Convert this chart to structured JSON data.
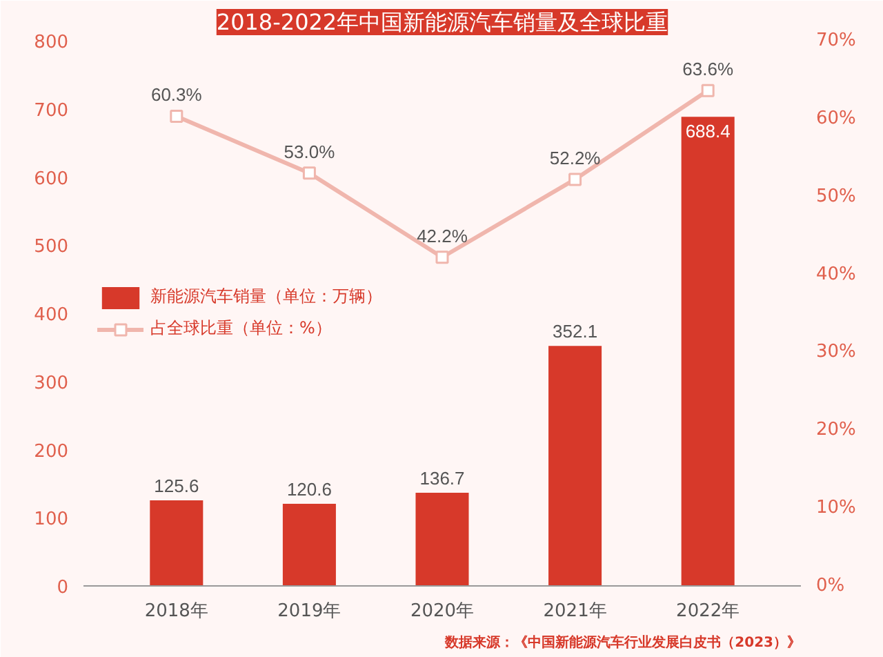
{
  "chart_data": {
    "type": "bar",
    "title": "2018-2022年中国新能源汽车销量及全球比重",
    "categories": [
      "2018年",
      "2019年",
      "2020年",
      "2021年",
      "2022年"
    ],
    "series": [
      {
        "name": "新能源汽车销量（单位：万辆）",
        "color": "#d7392a",
        "values": [
          125.6,
          120.6,
          136.7,
          352.1,
          688.4
        ],
        "value_labels": [
          "125.6",
          "120.6",
          "136.7",
          "352.1",
          "688.4"
        ]
      },
      {
        "name": "占全球比重（单位：%）",
        "type": "line",
        "axis": "y2",
        "color": "#f0b6ad",
        "marker": "square",
        "line_style": "solid",
        "values": [
          60.3,
          53.0,
          42.2,
          52.2,
          63.6
        ],
        "value_labels": [
          "60.3%",
          "53.0%",
          "42.2%",
          "52.2%",
          "63.6%"
        ]
      }
    ],
    "ylim": [
      0,
      800
    ],
    "yticks": [
      0,
      100,
      200,
      300,
      400,
      500,
      600,
      700,
      800
    ],
    "y2lim": [
      0,
      70
    ],
    "y2ticks": [
      {
        "value": 0,
        "label": "0%"
      },
      {
        "value": 10,
        "label": "10%"
      },
      {
        "value": 20,
        "label": "20%"
      },
      {
        "value": 30,
        "label": "30%"
      },
      {
        "value": 40,
        "label": "40%"
      },
      {
        "value": 50,
        "label": "50%"
      },
      {
        "value": 60,
        "label": "60%"
      },
      {
        "value": 70,
        "label": "70%"
      }
    ],
    "grid": false,
    "legend": "center left",
    "annotations": [
      "数据来源：《中国新能源汽车行业发展白皮书（2023）》"
    ]
  }
}
